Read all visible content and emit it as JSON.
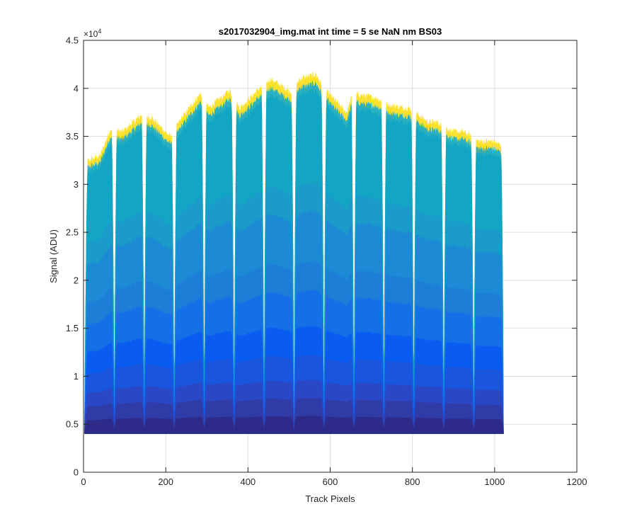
{
  "chart_data": {
    "type": "area",
    "title": "s2017032904_img.mat int time = 5 se  NaN nm BS03",
    "xlabel": "Track Pixels",
    "ylabel": "Signal (ADU)",
    "y_exponent_label": "×10",
    "y_exponent_power": "4",
    "xlim": [
      0,
      1200
    ],
    "ylim": [
      0,
      45000
    ],
    "x_ticks": [
      0,
      200,
      400,
      600,
      800,
      1000,
      1200
    ],
    "x_tick_labels": [
      "0",
      "200",
      "400",
      "600",
      "800",
      "1000",
      "1200"
    ],
    "y_ticks": [
      0,
      5000,
      10000,
      15000,
      20000,
      25000,
      30000,
      35000,
      40000,
      45000
    ],
    "y_tick_labels": [
      "0",
      "0.5",
      "1",
      "1.5",
      "2",
      "2.5",
      "3",
      "3.5",
      "4",
      "4.5"
    ],
    "grid": true,
    "baseline": 4000,
    "valley_min": 4200,
    "stripe_count": 14,
    "peak_profile": {
      "x": [
        2,
        10,
        40,
        66,
        95,
        140,
        165,
        210,
        240,
        285,
        305,
        355,
        380,
        440,
        455,
        510,
        525,
        565,
        585,
        640,
        655,
        715,
        730,
        775,
        790,
        840,
        860,
        900,
        925,
        960,
        995,
        1022
      ],
      "y": [
        20000,
        32500,
        33000,
        35800,
        35500,
        37200,
        37000,
        35000,
        37000,
        39500,
        38000,
        39800,
        38000,
        40500,
        41000,
        39500,
        41000,
        41500,
        40000,
        37500,
        39500,
        39000,
        38500,
        38000,
        38000,
        36500,
        36500,
        35500,
        35500,
        34500,
        34500,
        34000
      ]
    },
    "colors": {
      "top": "#fbe12f",
      "teal": "#13a6c4",
      "mid": "#1c7ed6",
      "blue": "#0a5bf0",
      "deep": "#2a47c6",
      "dark": "#2d2a8a",
      "axis": "#262626",
      "grid": "#dfdfdf"
    }
  }
}
